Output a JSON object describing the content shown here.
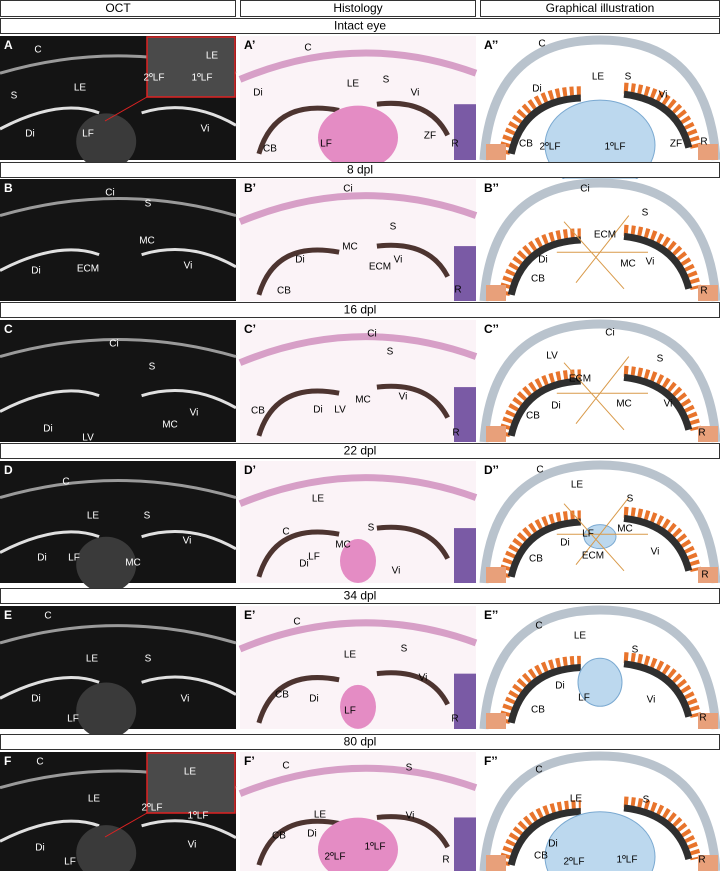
{
  "columns": [
    "OCT",
    "Histology",
    "Graphical illustration"
  ],
  "rows": [
    {
      "title": "Intact eye",
      "panels": [
        {
          "label": "A",
          "annotations": [
            "C",
            "LE",
            "2ºLF",
            "1ºLF",
            "S",
            "LE",
            "Di",
            "LF",
            "Vi"
          ]
        },
        {
          "label": "A’",
          "annotations": [
            "C",
            "Di",
            "LE",
            "S",
            "Vi",
            "CB",
            "LF",
            "ZF",
            "R"
          ]
        },
        {
          "label": "A’’",
          "annotations": [
            "C",
            "Di",
            "LE",
            "S",
            "Vi",
            "CB",
            "2ºLF",
            "1ºLF",
            "ZF",
            "R"
          ]
        }
      ]
    },
    {
      "title": "8 dpl",
      "panels": [
        {
          "label": "B",
          "annotations": [
            "Ci",
            "S",
            "MC",
            "ECM",
            "Di",
            "Vi"
          ]
        },
        {
          "label": "B’",
          "annotations": [
            "Ci",
            "S",
            "MC",
            "Di",
            "ECM",
            "Vi",
            "CB",
            "R"
          ]
        },
        {
          "label": "B’’",
          "annotations": [
            "Ci",
            "S",
            "ECM",
            "Di",
            "MC",
            "Vi",
            "CB",
            "R"
          ]
        }
      ]
    },
    {
      "title": "16 dpl",
      "panels": [
        {
          "label": "C",
          "annotations": [
            "Ci",
            "S",
            "Di",
            "LV",
            "MC",
            "Vi"
          ]
        },
        {
          "label": "C’",
          "annotations": [
            "Ci",
            "S",
            "LV",
            "Di",
            "MC",
            "Vi",
            "CB",
            "R"
          ]
        },
        {
          "label": "C’’",
          "annotations": [
            "Ci",
            "LV",
            "S",
            "ECM",
            "Di",
            "MC",
            "Vi",
            "CB",
            "R"
          ]
        }
      ]
    },
    {
      "title": "22 dpl",
      "panels": [
        {
          "label": "D",
          "annotations": [
            "C",
            "LE",
            "S",
            "Di",
            "LF",
            "MC",
            "Vi"
          ]
        },
        {
          "label": "D’",
          "annotations": [
            "C",
            "LE",
            "S",
            "LF",
            "MC",
            "Di",
            "Vi"
          ]
        },
        {
          "label": "D’’",
          "annotations": [
            "C",
            "LE",
            "S",
            "LF",
            "MC",
            "Di",
            "ECM",
            "Vi",
            "CB",
            "R"
          ]
        }
      ]
    },
    {
      "title": "34 dpl",
      "panels": [
        {
          "label": "E",
          "annotations": [
            "C",
            "LE",
            "S",
            "Di",
            "LF",
            "Vi"
          ]
        },
        {
          "label": "E’",
          "annotations": [
            "C",
            "LE",
            "S",
            "Vi",
            "CB",
            "Di",
            "LF",
            "R"
          ]
        },
        {
          "label": "E’’",
          "annotations": [
            "C",
            "LE",
            "S",
            "Di",
            "LF",
            "Vi",
            "CB",
            "R"
          ]
        }
      ]
    },
    {
      "title": "80 dpl",
      "panels": [
        {
          "label": "F",
          "annotations": [
            "C",
            "LE",
            "2ºLF",
            "1ºLF",
            "LE",
            "Di",
            "LF",
            "Vi"
          ]
        },
        {
          "label": "F’",
          "annotations": [
            "C",
            "S",
            "LE",
            "Vi",
            "CB",
            "Di",
            "2ºLF",
            "1ºLF",
            "R"
          ]
        },
        {
          "label": "F’’",
          "annotations": [
            "C",
            "LE",
            "S",
            "Di",
            "CB",
            "2ºLF",
            "1ºLF",
            "R"
          ]
        }
      ]
    }
  ]
}
